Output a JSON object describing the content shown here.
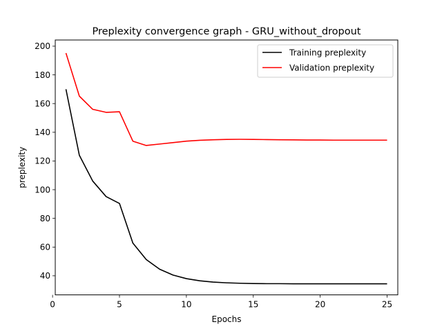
{
  "chart_data": {
    "type": "line",
    "title": "Preplexity convergence graph - GRU_without_dropout",
    "xlabel": "Epochs",
    "ylabel": "preplexity",
    "xlim": [
      0.2,
      25.8
    ],
    "ylim": [
      26.7,
      204.3
    ],
    "xticks": [
      0,
      5,
      10,
      15,
      20,
      25
    ],
    "yticks": [
      40,
      60,
      80,
      100,
      120,
      140,
      160,
      180,
      200
    ],
    "grid": false,
    "legend_position": "top-right",
    "x": [
      1,
      2,
      3,
      4,
      5,
      6,
      7,
      8,
      9,
      10,
      11,
      12,
      13,
      14,
      15,
      16,
      17,
      18,
      19,
      20,
      21,
      22,
      23,
      24,
      25
    ],
    "series": [
      {
        "name": "Training preplexity",
        "color": "#000000",
        "values": [
          170,
          124,
          106,
          95.2,
          90.4,
          62.8,
          51.3,
          44.6,
          40.5,
          38,
          36.5,
          35.6,
          35.1,
          34.8,
          34.6,
          34.5,
          34.5,
          34.4,
          34.4,
          34.4,
          34.4,
          34.4,
          34.4,
          34.4,
          34.4
        ]
      },
      {
        "name": "Validation preplexity",
        "color": "#ff0000",
        "values": [
          195.2,
          165.2,
          156,
          153.9,
          154.3,
          133.8,
          130.8,
          131.8,
          132.8,
          133.8,
          134.4,
          134.8,
          135,
          135.1,
          135,
          134.9,
          134.8,
          134.7,
          134.6,
          134.6,
          134.5,
          134.5,
          134.5,
          134.5,
          134.5
        ]
      }
    ]
  }
}
